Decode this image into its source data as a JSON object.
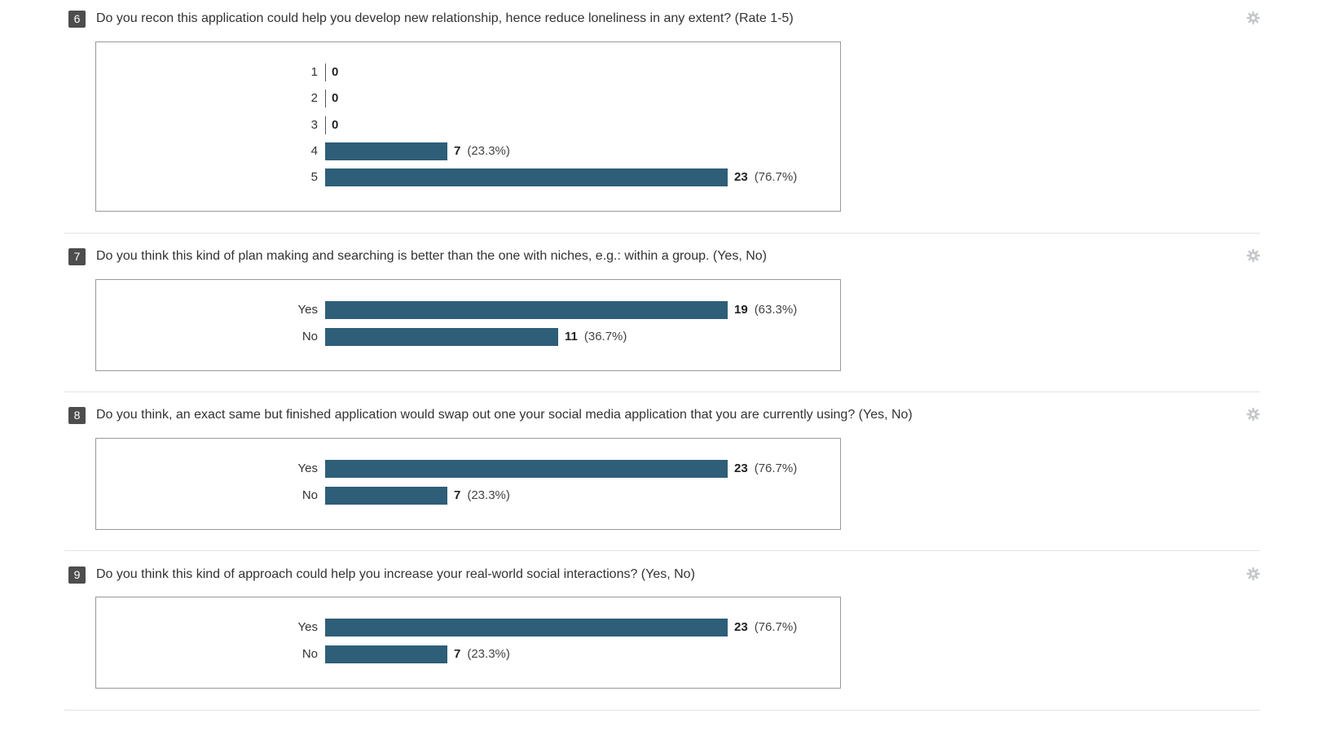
{
  "questions": [
    {
      "number": "6",
      "text": "Do you recon this application could help you develop new relationship, hence reduce loneliness in any extent? (Rate 1-5)",
      "chart_data": {
        "type": "bar",
        "orientation": "horizontal",
        "categories": [
          "1",
          "2",
          "3",
          "4",
          "5"
        ],
        "values": [
          0,
          0,
          0,
          7,
          23
        ],
        "percent_labels": [
          "",
          "",
          "",
          "(23.3%)",
          "(76.7%)"
        ],
        "max_value": 23,
        "bar_color": "#2e5e78"
      }
    },
    {
      "number": "7",
      "text": "Do you think this kind of plan making and searching is better than the one with niches, e.g.: within a group. (Yes, No)",
      "chart_data": {
        "type": "bar",
        "orientation": "horizontal",
        "categories": [
          "Yes",
          "No"
        ],
        "values": [
          19,
          11
        ],
        "percent_labels": [
          "(63.3%)",
          "(36.7%)"
        ],
        "max_value": 19,
        "bar_color": "#2e5e78"
      }
    },
    {
      "number": "8",
      "text": "Do you think, an exact same but finished application would swap out one your social media application that you are currently using? (Yes, No)",
      "chart_data": {
        "type": "bar",
        "orientation": "horizontal",
        "categories": [
          "Yes",
          "No"
        ],
        "values": [
          23,
          7
        ],
        "percent_labels": [
          "(76.7%)",
          "(23.3%)"
        ],
        "max_value": 23,
        "bar_color": "#2e5e78"
      }
    },
    {
      "number": "9",
      "text": "Do you think this kind of approach could help you increase your real-world social interactions? (Yes, No)",
      "chart_data": {
        "type": "bar",
        "orientation": "horizontal",
        "categories": [
          "Yes",
          "No"
        ],
        "values": [
          23,
          7
        ],
        "percent_labels": [
          "(76.7%)",
          "(23.3%)"
        ],
        "max_value": 23,
        "bar_color": "#2e5e78"
      }
    }
  ],
  "icons": {
    "settings": "gear-icon"
  },
  "colors": {
    "number_badge": "#4d4d4d",
    "bar": "#2e5e78",
    "box_border": "#999999",
    "separator": "#e3e3e3"
  }
}
